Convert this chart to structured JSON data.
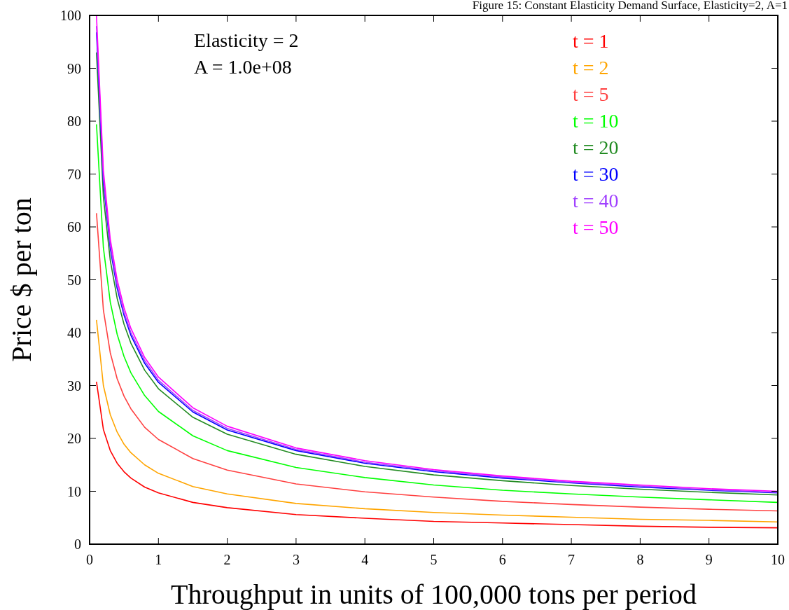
{
  "chart_data": {
    "type": "line",
    "title": "Figure 15: Constant Elasticity Demand Surface, Elasticity=2, A=1",
    "xlabel": "Throughput in units of 100,000 tons per period",
    "ylabel": "Price $ per ton",
    "annotations": [
      "Elasticity = 2",
      "A = 1.0e+08"
    ],
    "x": [
      0.1,
      0.2,
      0.3,
      0.4,
      0.5,
      0.6,
      0.8,
      1,
      1.5,
      2,
      3,
      4,
      5,
      6,
      7,
      8,
      9,
      10
    ],
    "xlim": [
      0,
      10
    ],
    "xticks": [
      0,
      1,
      2,
      3,
      4,
      5,
      6,
      7,
      8,
      9,
      10
    ],
    "ylim": [
      0,
      100
    ],
    "yticks": [
      0,
      10,
      20,
      30,
      40,
      50,
      60,
      70,
      80,
      90,
      100
    ],
    "grid": false,
    "legend": "top right",
    "marker": "none",
    "line_style": "solid",
    "series": [
      {
        "name": "t = 1",
        "color": "#ff0000",
        "values": [
          30.7,
          21.7,
          17.7,
          15.3,
          13.7,
          12.5,
          10.8,
          9.7,
          7.9,
          6.9,
          5.6,
          4.9,
          4.3,
          4.0,
          3.7,
          3.4,
          3.2,
          3.1
        ]
      },
      {
        "name": "t = 2",
        "color": "#ffa500",
        "values": [
          42.4,
          30.0,
          24.5,
          21.2,
          18.9,
          17.3,
          15.0,
          13.4,
          10.9,
          9.5,
          7.7,
          6.7,
          6.0,
          5.5,
          5.1,
          4.7,
          4.5,
          4.2
        ]
      },
      {
        "name": "t = 5",
        "color": "#ff4040",
        "values": [
          62.6,
          44.3,
          36.2,
          31.3,
          28.0,
          25.6,
          22.1,
          19.8,
          16.2,
          14.0,
          11.4,
          9.9,
          8.9,
          8.1,
          7.5,
          7.0,
          6.6,
          6.3
        ]
      },
      {
        "name": "t = 10",
        "color": "#00ff00",
        "values": [
          79.4,
          56.1,
          45.8,
          39.7,
          35.5,
          32.4,
          28.1,
          25.1,
          20.5,
          17.7,
          14.5,
          12.6,
          11.2,
          10.2,
          9.5,
          8.9,
          8.4,
          7.9
        ]
      },
      {
        "name": "t = 20",
        "color": "#228b22",
        "values": [
          93.0,
          65.7,
          53.7,
          46.5,
          41.6,
          38.0,
          32.9,
          29.4,
          24.0,
          20.8,
          17.0,
          14.7,
          13.1,
          12.0,
          11.1,
          10.4,
          9.8,
          9.3
        ]
      },
      {
        "name": "t = 30",
        "color": "#0000ff",
        "values": [
          96.8,
          68.4,
          55.9,
          48.4,
          43.3,
          39.5,
          34.2,
          30.6,
          25.0,
          21.6,
          17.7,
          15.3,
          13.7,
          12.5,
          11.6,
          10.8,
          10.2,
          9.7
        ]
      },
      {
        "name": "t = 40",
        "color": "#a040ff",
        "values": [
          98.0,
          69.3,
          56.6,
          49.0,
          43.8,
          40.0,
          34.7,
          31.0,
          25.3,
          21.9,
          17.9,
          15.5,
          13.9,
          12.7,
          11.7,
          11.0,
          10.3,
          9.8
        ]
      },
      {
        "name": "t = 50",
        "color": "#ff00ff",
        "values": [
          99.9,
          70.7,
          57.7,
          50.0,
          44.7,
          40.8,
          35.3,
          31.6,
          25.8,
          22.3,
          18.2,
          15.8,
          14.1,
          12.9,
          11.9,
          11.2,
          10.5,
          10.0
        ]
      }
    ]
  }
}
